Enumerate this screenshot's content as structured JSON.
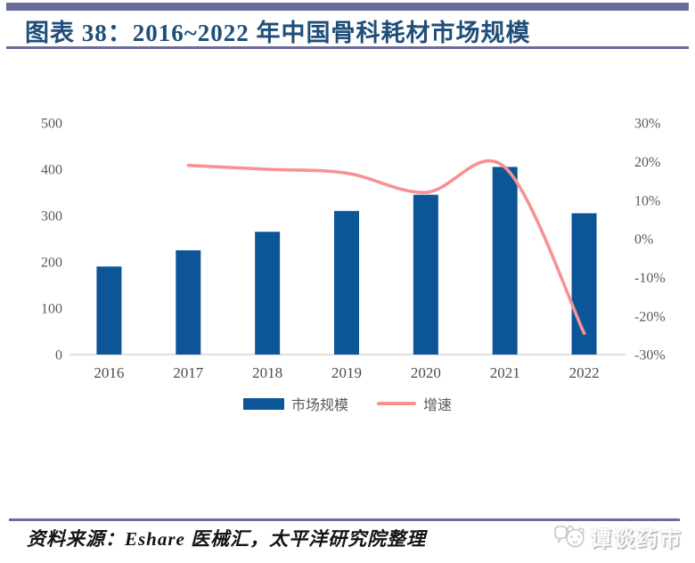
{
  "title": {
    "text": "图表 38：2016~2022 年中国骨科耗材市场规模"
  },
  "chart_data": {
    "type": "bar",
    "combo": "bar+line",
    "title": "图表 38：2016~2022 年中国骨科耗材市场规模",
    "categories": [
      "2016",
      "2017",
      "2018",
      "2019",
      "2020",
      "2021",
      "2022"
    ],
    "series": [
      {
        "name": "市场规模",
        "type": "bar",
        "axis": "left",
        "color": "#0C5697",
        "values": [
          190,
          225,
          265,
          310,
          345,
          405,
          305
        ]
      },
      {
        "name": "增速",
        "type": "line",
        "axis": "right",
        "unit": "%",
        "color": "#F89193",
        "x": [
          "2017",
          "2018",
          "2019",
          "2020",
          "2021",
          "2022"
        ],
        "values": [
          19,
          18,
          17,
          12,
          18.5,
          -24.5
        ]
      }
    ],
    "left_axis": {
      "min": 0,
      "max": 500,
      "ticks": [
        {
          "value": 0,
          "label": "0"
        },
        {
          "value": 100,
          "label": "100"
        },
        {
          "value": 200,
          "label": "200"
        },
        {
          "value": 300,
          "label": "300"
        },
        {
          "value": 400,
          "label": "400"
        },
        {
          "value": 500,
          "label": "500"
        }
      ]
    },
    "right_axis": {
      "min": -30,
      "max": 30,
      "ticks": [
        {
          "value": 30,
          "label": "30%"
        },
        {
          "value": 20,
          "label": "20%"
        },
        {
          "value": 10,
          "label": "10%"
        },
        {
          "value": 0,
          "label": "0%"
        },
        {
          "value": -10,
          "label": "-10%"
        },
        {
          "value": -20,
          "label": "-20%"
        },
        {
          "value": -30,
          "label": "-30%"
        }
      ]
    },
    "grid": false,
    "legend_position": "bottom-center"
  },
  "legend": {
    "items": [
      {
        "label": "市场规模",
        "type": "bar",
        "color": "#0C5697"
      },
      {
        "label": "增速",
        "type": "line",
        "color": "#F89193"
      }
    ]
  },
  "source": {
    "text": "资料来源：Eshare 医械汇，太平洋研究院整理"
  },
  "watermark": {
    "text": "谭谈药市",
    "logo": "panda-chat-logo"
  },
  "colors": {
    "bar": "#0C5697",
    "line": "#F89193",
    "title_text": "#1F4E79",
    "rule": "#6A6A9B",
    "axis_text": "#595959",
    "axis_line": "#D6D6D6"
  }
}
